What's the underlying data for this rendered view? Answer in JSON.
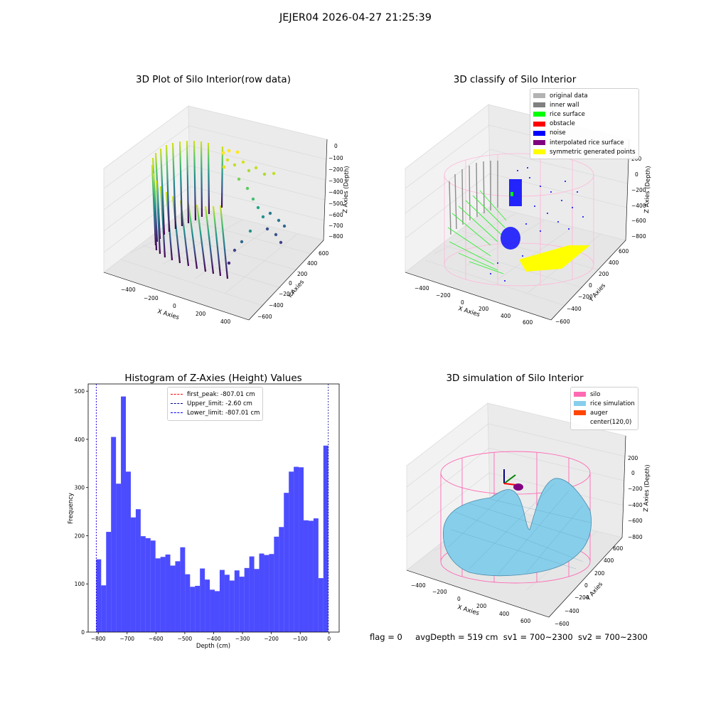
{
  "suptitle": "JEJER04 2026-04-27 21:25:39",
  "panels": {
    "raw": {
      "title": "3D Plot of Silo Interior(row data)",
      "xlabel": "X Axies",
      "ylabel": "Y Axies",
      "zlabel": "Z Axies (Depth)",
      "x_ticks": [
        "−400",
        "−200",
        "0",
        "200",
        "400"
      ],
      "y_ticks": [
        "−600",
        "−400",
        "−200",
        "0",
        "200",
        "400",
        "600"
      ],
      "z_ticks": [
        "0",
        "−100",
        "−200",
        "−300",
        "−400",
        "−500",
        "−600",
        "−700",
        "−800"
      ]
    },
    "classify": {
      "title": "3D classify of Silo Interior",
      "xlabel": "X Axies",
      "ylabel": "Y Axies",
      "zlabel": "Z Axies (Depth)",
      "x_ticks": [
        "−400",
        "−200",
        "0",
        "200",
        "400",
        "600"
      ],
      "y_ticks": [
        "−600",
        "−400",
        "−200",
        "0",
        "200",
        "400",
        "600"
      ],
      "z_ticks": [
        "200",
        "0",
        "−200",
        "−400",
        "−600",
        "−800"
      ],
      "legend": [
        {
          "label": "original data",
          "color": "#b3b3b3"
        },
        {
          "label": "inner wall",
          "color": "#808080"
        },
        {
          "label": "rice surface",
          "color": "#00ff00"
        },
        {
          "label": "obstacle",
          "color": "#ff0000"
        },
        {
          "label": "noise",
          "color": "#0000ff"
        },
        {
          "label": "interpolated rice surface",
          "color": "#800080"
        },
        {
          "label": "symmetric generated points",
          "color": "#ffff00"
        }
      ]
    },
    "simulation": {
      "title": "3D simulation of Silo Interior",
      "xlabel": "X Axies",
      "ylabel": "Y Axies",
      "zlabel": "Z Axies (Depth)",
      "x_ticks": [
        "−400",
        "−200",
        "0",
        "200",
        "400",
        "600"
      ],
      "y_ticks": [
        "−600",
        "−400",
        "−200",
        "0",
        "200",
        "400",
        "600"
      ],
      "z_ticks": [
        "200",
        "0",
        "−200",
        "−400",
        "−600",
        "−800"
      ],
      "legend": [
        {
          "label": "silo",
          "color": "#ff69b4"
        },
        {
          "label": "rice simulation",
          "color": "#87ceeb"
        },
        {
          "label": "auger",
          "color": "#ff4500"
        },
        {
          "label": "center(120,0)",
          "color": "none"
        }
      ]
    }
  },
  "chart_data": {
    "type": "bar",
    "title": "Histogram of Z-Axies (Height) Values",
    "xlabel": "Depth (cm)",
    "ylabel": "Frequency",
    "xlim": [
      -835,
      35
    ],
    "ylim": [
      0,
      515
    ],
    "x_ticks": [
      -800,
      -700,
      -600,
      -500,
      -400,
      -300,
      -200,
      -100,
      0
    ],
    "y_ticks": [
      0,
      100,
      200,
      300,
      400,
      500
    ],
    "bin_range": [
      -807.01,
      -2.6
    ],
    "values": [
      151,
      97,
      208,
      405,
      308,
      489,
      333,
      238,
      255,
      199,
      195,
      190,
      153,
      156,
      161,
      138,
      147,
      176,
      120,
      94,
      96,
      132,
      109,
      88,
      85,
      129,
      119,
      107,
      128,
      115,
      133,
      157,
      131,
      163,
      160,
      162,
      198,
      218,
      289,
      333,
      343,
      342,
      232,
      231,
      236,
      112,
      387
    ],
    "color": "#0000ff",
    "grid": false,
    "legend_position": "upper center",
    "lines": [
      {
        "label": "first_peak: -807.01 cm",
        "x": -807.01,
        "color": "#ff0000"
      },
      {
        "label": "Upper_limit: -2.60 cm",
        "x": -2.6,
        "color": "#00008b"
      },
      {
        "label": "Lower_limit: -807.01 cm",
        "x": -807.01,
        "color": "#0000ff"
      }
    ]
  },
  "footer": {
    "flag": "flag = 0",
    "avg": "avgDepth = 519 cm",
    "sv1": "sv1 = 700~2300",
    "sv2": "sv2 = 700~2300"
  }
}
